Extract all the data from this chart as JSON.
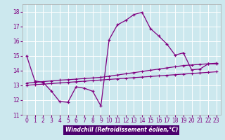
{
  "xlabel": "Windchill (Refroidissement éolien,°C)",
  "background_color": "#cce8ee",
  "grid_color": "#ffffff",
  "line_color": "#800080",
  "xlim": [
    -0.5,
    23.5
  ],
  "ylim": [
    11,
    18.5
  ],
  "yticks": [
    11,
    12,
    13,
    14,
    15,
    16,
    17,
    18
  ],
  "xticks": [
    0,
    1,
    2,
    3,
    4,
    5,
    6,
    7,
    8,
    9,
    10,
    11,
    12,
    13,
    14,
    15,
    16,
    17,
    18,
    19,
    20,
    21,
    22,
    23
  ],
  "series1_x": [
    0,
    1,
    2,
    3,
    4,
    5,
    6,
    7,
    8,
    9,
    10,
    11,
    12,
    13,
    14,
    15,
    16,
    17,
    18,
    19,
    20,
    21,
    22,
    23
  ],
  "series1_y": [
    15.0,
    13.3,
    13.2,
    12.6,
    11.9,
    11.85,
    12.9,
    12.8,
    12.6,
    11.6,
    16.1,
    17.1,
    17.4,
    17.8,
    17.95,
    16.85,
    16.35,
    15.8,
    15.05,
    15.2,
    14.05,
    14.1,
    14.45,
    14.45
  ],
  "series2_x": [
    0,
    1,
    2,
    3,
    4,
    5,
    6,
    7,
    8,
    9,
    10,
    11,
    12,
    13,
    14,
    15,
    16,
    17,
    18,
    19,
    20,
    21,
    22,
    23
  ],
  "series2_y": [
    13.15,
    13.2,
    13.25,
    13.3,
    13.35,
    13.38,
    13.42,
    13.46,
    13.5,
    13.54,
    13.62,
    13.7,
    13.78,
    13.86,
    13.94,
    14.02,
    14.1,
    14.18,
    14.26,
    14.34,
    14.38,
    14.42,
    14.46,
    14.5
  ],
  "series3_x": [
    0,
    1,
    2,
    3,
    4,
    5,
    6,
    7,
    8,
    9,
    10,
    11,
    12,
    13,
    14,
    15,
    16,
    17,
    18,
    19,
    20,
    21,
    22,
    23
  ],
  "series3_y": [
    13.0,
    13.04,
    13.08,
    13.12,
    13.16,
    13.2,
    13.24,
    13.28,
    13.32,
    13.36,
    13.4,
    13.44,
    13.48,
    13.52,
    13.56,
    13.6,
    13.64,
    13.68,
    13.72,
    13.76,
    13.8,
    13.84,
    13.88,
    13.92
  ],
  "xlabel_bg": "#4b006e",
  "xlabel_fg": "#ffffff",
  "tick_fontsize": 5.5,
  "xlabel_fontsize": 5.5
}
